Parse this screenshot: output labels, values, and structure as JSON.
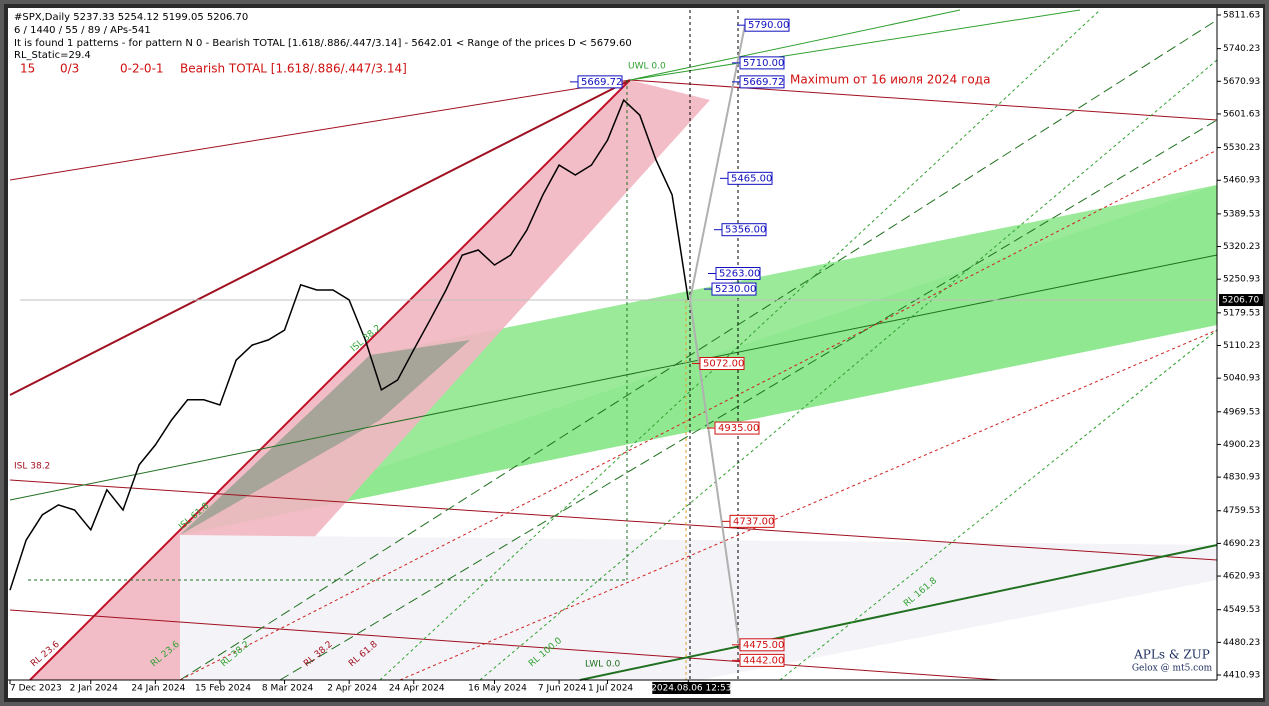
{
  "chart_data": {
    "type": "line",
    "header": {
      "symbol_line": "#SPX,Daily  5237.33 5254.12 5199.05 5206.70",
      "params": "6 / 1440 / 55 / 89 / APs-541",
      "pattern_line": "It is found 1 patterns  -  for pattern N 0 - Bearish TOTAL [1.618/.886/.447/3.14] - 5642.01 < Range of the prices D < 5679.60",
      "rl_static": "RL_Static=29.4",
      "row": [
        "15",
        "0/3",
        "0-2-0-1",
        "Bearish TOTAL [1.618/.886/.447/3.14]"
      ]
    },
    "categories": [
      "7 Dec 2023",
      null,
      null,
      null,
      null,
      "2 Jan 2024",
      null,
      null,
      null,
      "24 Jan 2024",
      null,
      null,
      null,
      "15 Feb 2024",
      null,
      null,
      null,
      "8 Mar 2024",
      null,
      null,
      null,
      "2 Apr 2024",
      null,
      null,
      null,
      "24 Apr 2024",
      null,
      null,
      null,
      null,
      "16 May 2024",
      null,
      null,
      null,
      "7 Jun 2024",
      null,
      null,
      "1 Jul 2024",
      null,
      null,
      null,
      null,
      "2024.08.06 12:53"
    ],
    "series": [
      {
        "name": "SPX",
        "color": "#000000",
        "values": [
          4591,
          4697,
          4751,
          4772,
          4761,
          4719,
          4804,
          4761,
          4857,
          4899,
          4952,
          4995,
          4995,
          4984,
          5079,
          5111,
          5122,
          5143,
          5239,
          5228,
          5228,
          5207,
          5122,
          5016,
          5037,
          5101,
          5164,
          5228,
          5302,
          5313,
          5281,
          5302,
          5355,
          5430,
          5493,
          5472,
          5493,
          5546,
          5631,
          5599,
          5504,
          5430,
          5206.7
        ]
      }
    ],
    "ylim": [
      4410.93,
      5811.63
    ],
    "yticks": [
      5811.63,
      5740.23,
      5670.93,
      5601.63,
      5530.23,
      5460.93,
      5389.53,
      5320.23,
      5250.93,
      5179.53,
      5110.23,
      5040.93,
      4969.53,
      4900.23,
      4830.93,
      4759.53,
      4690.23,
      4620.93,
      4549.53,
      4480.23,
      4410.93
    ],
    "last_price": {
      "value": 5206.7,
      "label": "5206.70"
    },
    "levels": [
      {
        "value": 5790,
        "label": "5790.00",
        "color": "#1010c0"
      },
      {
        "value": 5710,
        "label": "5710.00",
        "color": "#1010c0"
      },
      {
        "value": 5669.72,
        "label": "5669.72",
        "color": "#1010c0"
      },
      {
        "value": 5669.72,
        "label": "5669.72",
        "color": "#1010c0"
      },
      {
        "value": 5465,
        "label": "5465.00",
        "color": "#1010c0"
      },
      {
        "value": 5356,
        "label": "5356.00",
        "color": "#1010c0"
      },
      {
        "value": 5263,
        "label": "5263.00",
        "color": "#1010c0"
      },
      {
        "value": 5230,
        "label": "5230.00",
        "color": "#1010c0"
      },
      {
        "value": 5072,
        "label": "5072.00",
        "color": "#d01010"
      },
      {
        "value": 4935,
        "label": "4935.00",
        "color": "#d01010"
      },
      {
        "value": 4737,
        "label": "4737.00",
        "color": "#d01010"
      },
      {
        "value": 4475,
        "label": "4475.00",
        "color": "#d01010"
      },
      {
        "value": 4442,
        "label": "4442.00",
        "color": "#d01010"
      }
    ],
    "annotations": [
      "Maximum от 16 июля 2024 года",
      "UWL 0.0",
      "ISL 38.2",
      "ISL 38.2",
      "ISL 61.8",
      "RL 23.6",
      "RL 23.6",
      "RL 38.2",
      "RL 38.2",
      "RL 61.8",
      "RL 100.0",
      "LWL 0.0",
      "RL 161.8"
    ],
    "watermark": [
      "APLs & ZUP",
      "Gelox @ mt5.com"
    ]
  }
}
